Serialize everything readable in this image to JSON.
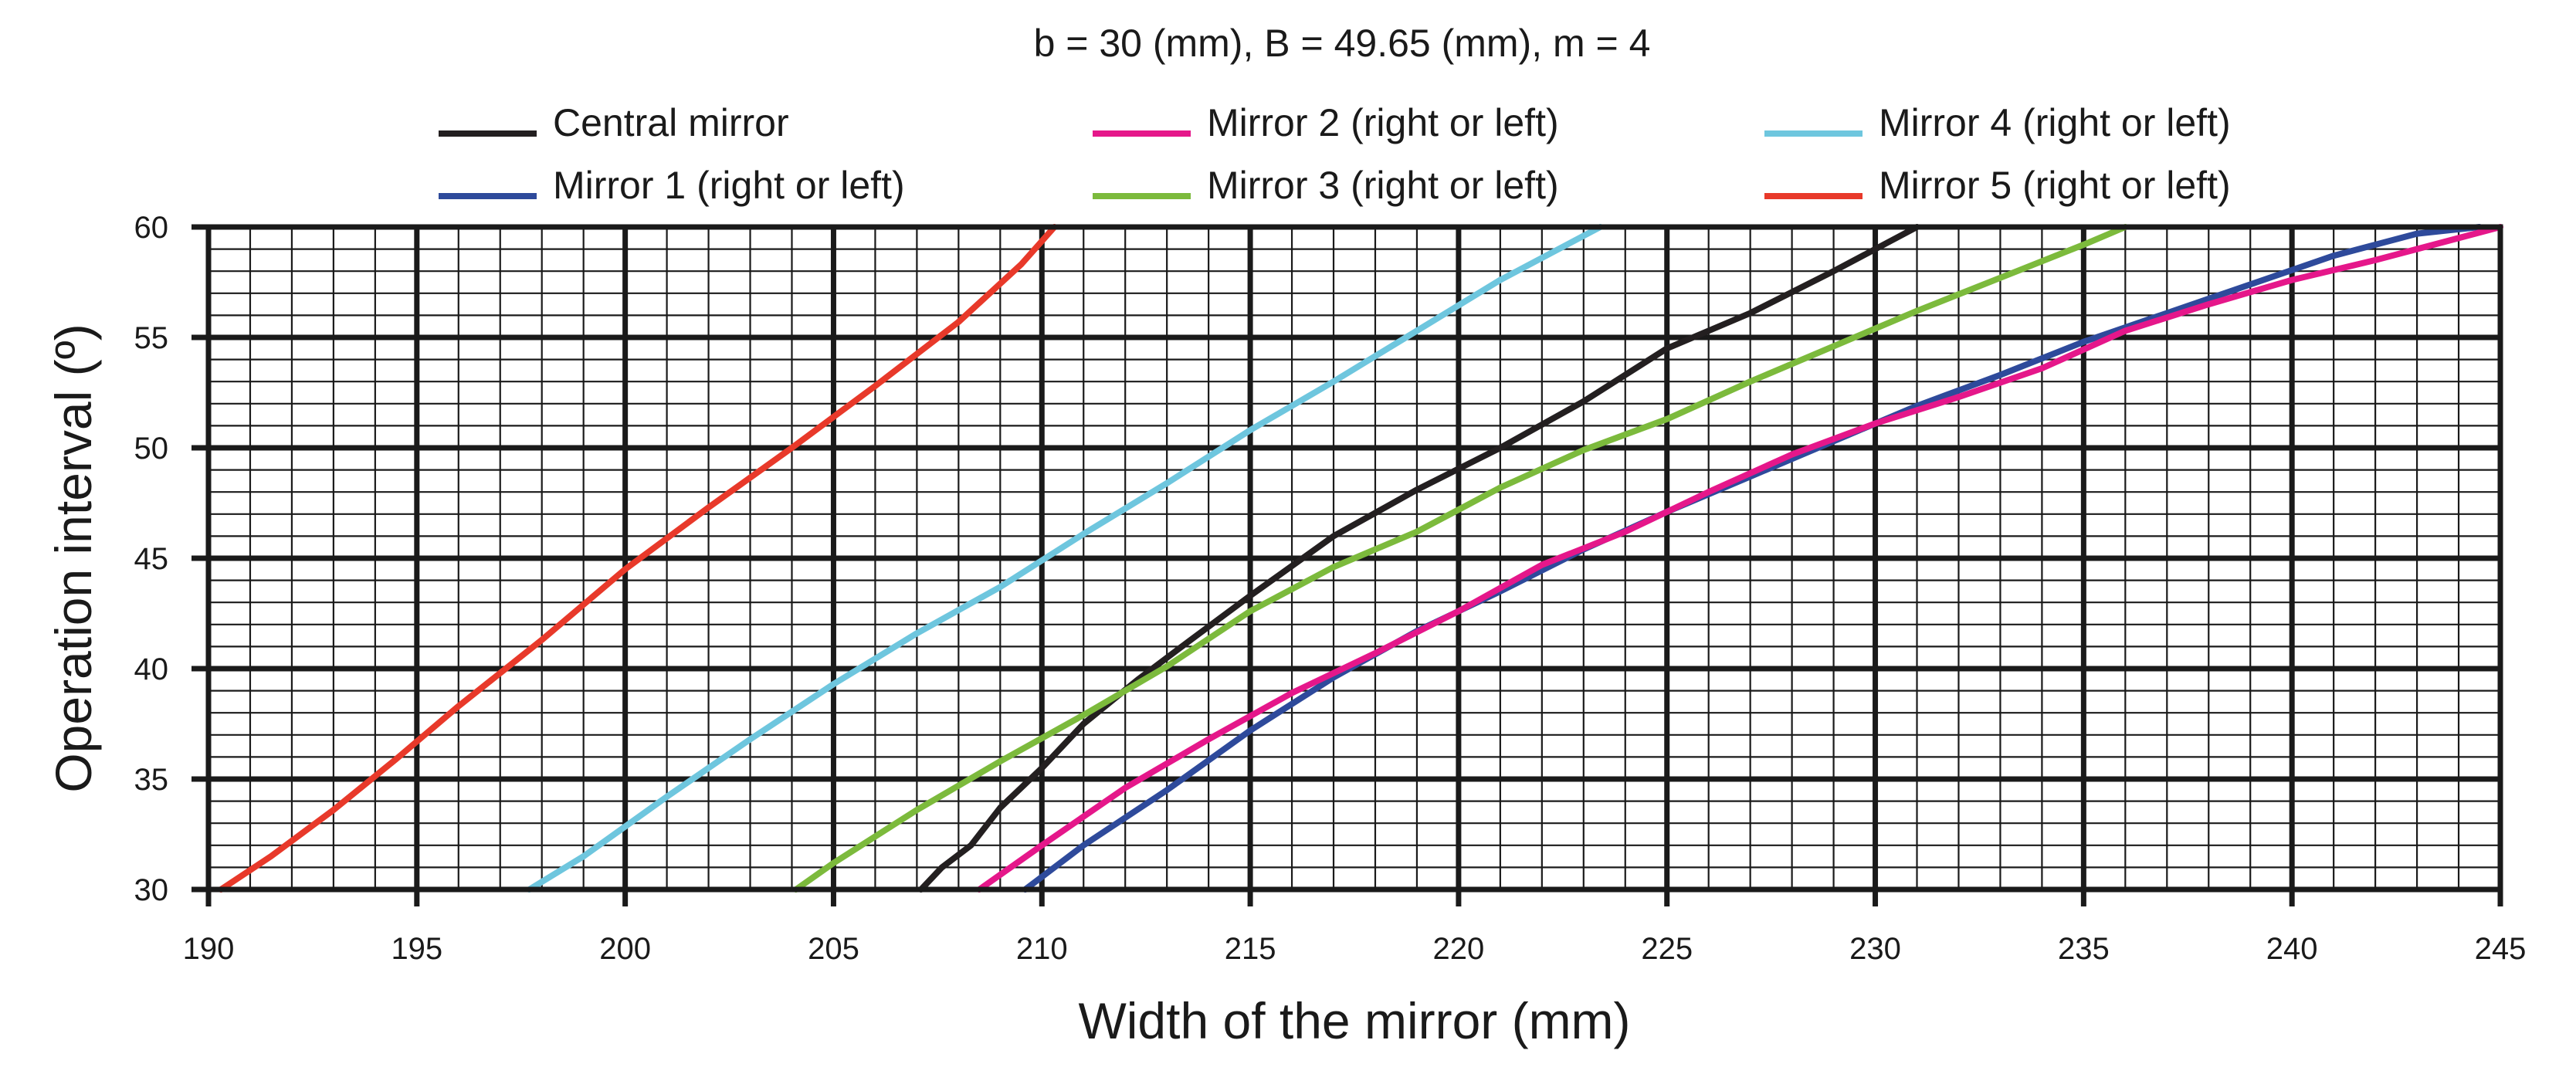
{
  "chart_data": {
    "type": "line",
    "title": "b = 30 (mm), B = 49.65 (mm), m = 4",
    "xlabel": "Width of the mirror (mm)",
    "ylabel": "Operation interval (º)",
    "xlim": [
      190,
      245
    ],
    "ylim": [
      30,
      60
    ],
    "x_ticks": [
      "190",
      "195",
      "200",
      "205",
      "210",
      "215",
      "220",
      "225",
      "230",
      "235",
      "240",
      "245"
    ],
    "y_ticks": [
      "30",
      "35",
      "40",
      "45",
      "50",
      "55",
      "60"
    ],
    "grid": true,
    "legend_position": "top",
    "series": [
      {
        "name": "Central mirror",
        "color": "#231f20",
        "points": [
          [
            207.1,
            30
          ],
          [
            207.6,
            31
          ],
          [
            208.3,
            32
          ],
          [
            209.0,
            33.7
          ],
          [
            210.0,
            35.5
          ],
          [
            211.0,
            37.5
          ],
          [
            212.3,
            39.5
          ],
          [
            213.5,
            41.2
          ],
          [
            215.0,
            43.3
          ],
          [
            217.0,
            46.0
          ],
          [
            219.0,
            48.1
          ],
          [
            221.0,
            50.0
          ],
          [
            223.0,
            52.1
          ],
          [
            225.0,
            54.5
          ],
          [
            227.0,
            56.1
          ],
          [
            229.0,
            58.0
          ],
          [
            231.0,
            60.0
          ]
        ]
      },
      {
        "name": "Mirror 1 (right or left)",
        "color": "#2e4a9b",
        "points": [
          [
            209.6,
            30
          ],
          [
            211.0,
            32.0
          ],
          [
            213.0,
            34.5
          ],
          [
            215.0,
            37.2
          ],
          [
            217.0,
            39.6
          ],
          [
            219.0,
            41.7
          ],
          [
            221.0,
            43.5
          ],
          [
            223.0,
            45.4
          ],
          [
            225.0,
            47.1
          ],
          [
            227.0,
            48.7
          ],
          [
            229.0,
            50.3
          ],
          [
            231.0,
            51.9
          ],
          [
            233.0,
            53.3
          ],
          [
            235.0,
            54.8
          ],
          [
            237.0,
            56.1
          ],
          [
            239.0,
            57.4
          ],
          [
            241.0,
            58.7
          ],
          [
            243.0,
            59.7
          ],
          [
            244.5,
            60.0
          ]
        ]
      },
      {
        "name": "Mirror 2 (right or left)",
        "color": "#e5178a",
        "points": [
          [
            208.5,
            30
          ],
          [
            210.0,
            32.0
          ],
          [
            212.0,
            34.6
          ],
          [
            214.0,
            36.8
          ],
          [
            216.0,
            38.9
          ],
          [
            218.0,
            40.7
          ],
          [
            220.0,
            42.6
          ],
          [
            222.0,
            44.7
          ],
          [
            224.0,
            46.2
          ],
          [
            226.0,
            48.0
          ],
          [
            228.0,
            49.7
          ],
          [
            230.0,
            51.1
          ],
          [
            232.0,
            52.3
          ],
          [
            234.0,
            53.6
          ],
          [
            236.0,
            55.3
          ],
          [
            238.0,
            56.5
          ],
          [
            240.0,
            57.6
          ],
          [
            242.0,
            58.5
          ],
          [
            245.0,
            60.0
          ]
        ]
      },
      {
        "name": "Mirror 3 (right or left)",
        "color": "#7cba3c",
        "points": [
          [
            204.1,
            30
          ],
          [
            205.0,
            31.2
          ],
          [
            207.0,
            33.6
          ],
          [
            209.0,
            35.8
          ],
          [
            211.0,
            37.9
          ],
          [
            213.0,
            40.1
          ],
          [
            215.0,
            42.6
          ],
          [
            217.0,
            44.6
          ],
          [
            219.0,
            46.2
          ],
          [
            221.0,
            48.2
          ],
          [
            223.0,
            49.9
          ],
          [
            225.0,
            51.3
          ],
          [
            227.0,
            53.0
          ],
          [
            229.0,
            54.6
          ],
          [
            231.0,
            56.2
          ],
          [
            233.0,
            57.7
          ],
          [
            235.0,
            59.2
          ],
          [
            236.0,
            60.0
          ]
        ]
      },
      {
        "name": "Mirror 4 (right or left)",
        "color": "#6ec6de",
        "points": [
          [
            197.7,
            30
          ],
          [
            199.0,
            31.5
          ],
          [
            201.0,
            34.2
          ],
          [
            203.0,
            36.8
          ],
          [
            205.0,
            39.3
          ],
          [
            207.0,
            41.6
          ],
          [
            209.0,
            43.7
          ],
          [
            211.0,
            46.1
          ],
          [
            213.0,
            48.4
          ],
          [
            215.0,
            50.8
          ],
          [
            217.0,
            53.0
          ],
          [
            219.0,
            55.3
          ],
          [
            221.0,
            57.6
          ],
          [
            223.4,
            60.0
          ]
        ]
      },
      {
        "name": "Mirror 5 (right or left)",
        "color": "#e8392a",
        "points": [
          [
            190.3,
            30
          ],
          [
            191.5,
            31.5
          ],
          [
            193.0,
            33.6
          ],
          [
            194.5,
            35.9
          ],
          [
            196.0,
            38.3
          ],
          [
            198.0,
            41.3
          ],
          [
            200.0,
            44.5
          ],
          [
            202.0,
            47.3
          ],
          [
            204.0,
            50.0
          ],
          [
            206.0,
            52.8
          ],
          [
            208.0,
            55.7
          ],
          [
            209.5,
            58.3
          ],
          [
            210.3,
            60.0
          ]
        ]
      }
    ]
  }
}
